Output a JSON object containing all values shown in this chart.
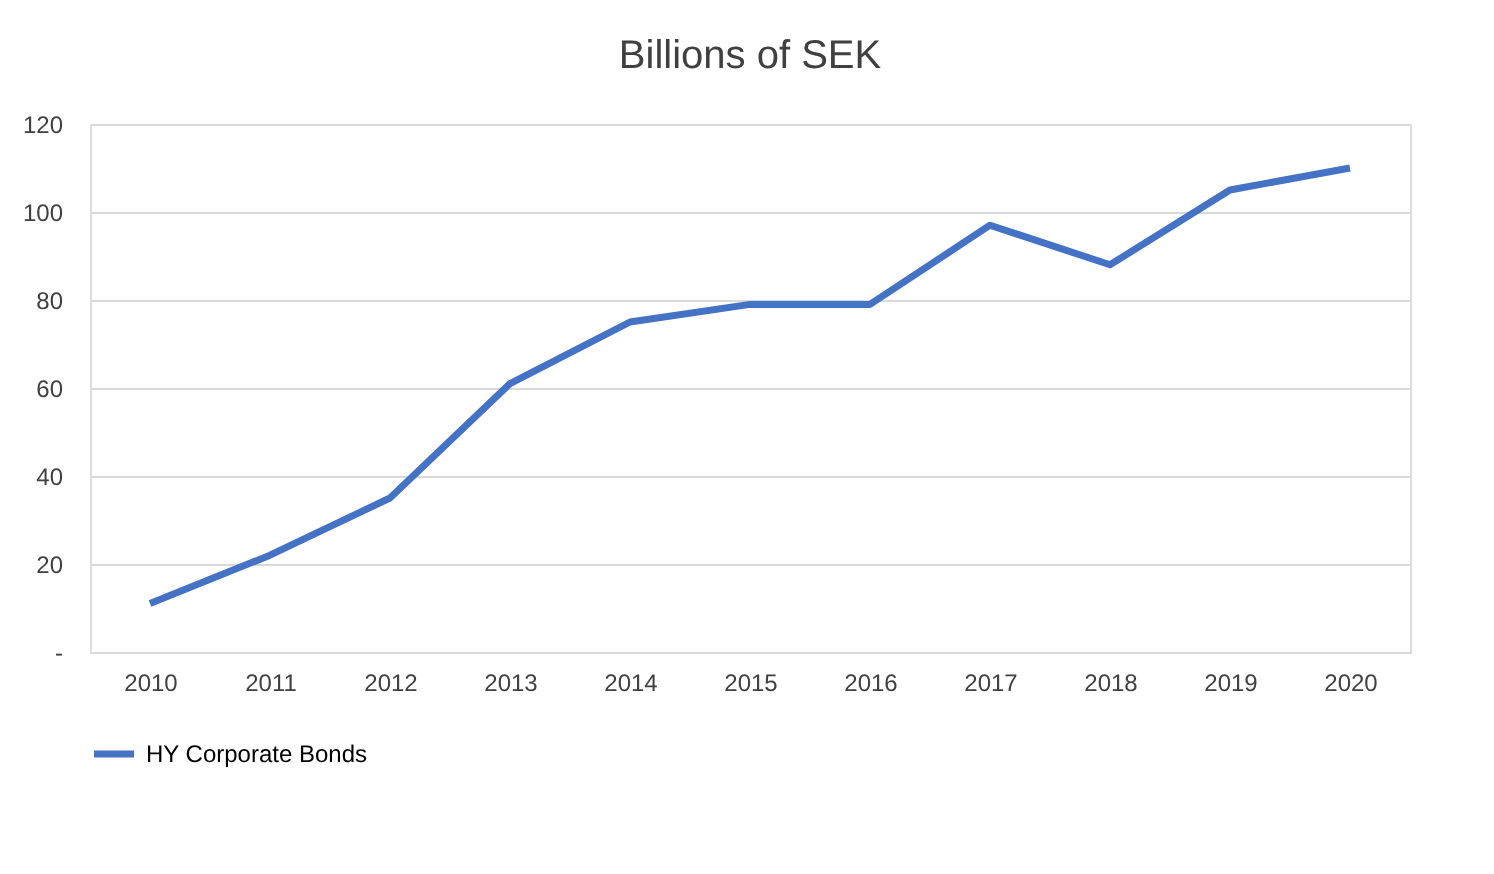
{
  "chart_data": {
    "type": "line",
    "title": "Billions of SEK",
    "categories": [
      "2010",
      "2011",
      "2012",
      "2013",
      "2014",
      "2015",
      "2016",
      "2017",
      "2018",
      "2019",
      "2020"
    ],
    "series": [
      {
        "name": "HY Corporate Bonds",
        "color": "#4472c4",
        "values": [
          11,
          22,
          35,
          61,
          75,
          79,
          79,
          97,
          88,
          105,
          110
        ]
      }
    ],
    "ylim": [
      0,
      120
    ],
    "yticks": [
      {
        "value": 0,
        "label": "-"
      },
      20,
      40,
      60,
      80,
      100,
      120
    ],
    "grid": "y",
    "legend": "bottom",
    "marker": "none",
    "line_style": "solid"
  }
}
